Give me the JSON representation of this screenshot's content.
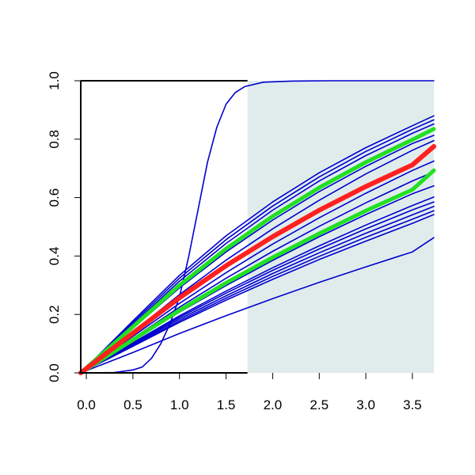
{
  "chart_data": {
    "type": "line",
    "title": "",
    "xlabel": "",
    "ylabel": "",
    "xlim": [
      -0.06,
      3.73
    ],
    "ylim": [
      0,
      1
    ],
    "grid": false,
    "x_ticks": [
      {
        "value": 0.0,
        "label": "0.0"
      },
      {
        "value": 0.5,
        "label": "0.5"
      },
      {
        "value": 1.0,
        "label": "1.0"
      },
      {
        "value": 1.5,
        "label": "1.5"
      },
      {
        "value": 2.0,
        "label": "2.0"
      },
      {
        "value": 2.5,
        "label": "2.5"
      },
      {
        "value": 3.0,
        "label": "3.0"
      },
      {
        "value": 3.5,
        "label": "3.5"
      }
    ],
    "y_ticks": [
      {
        "value": 0.0,
        "label": "0.0"
      },
      {
        "value": 0.2,
        "label": "0.2"
      },
      {
        "value": 0.4,
        "label": "0.4"
      },
      {
        "value": 0.6,
        "label": "0.6"
      },
      {
        "value": 0.8,
        "label": "0.8"
      },
      {
        "value": 1.0,
        "label": "1.0"
      }
    ],
    "shaded_region": {
      "x_from": 1.73,
      "x_to": 3.73,
      "y_from": 0,
      "y_to": 1,
      "color": "#e0ecec"
    },
    "colors": {
      "thin": "#0000cd",
      "mean": "#ff2020",
      "band": "#22e022",
      "axis": "#000000"
    },
    "series": [
      {
        "role": "sigmoid",
        "x": [
          -0.06,
          0.3,
          0.5,
          0.6,
          0.7,
          0.8,
          0.9,
          1.0,
          1.1,
          1.2,
          1.3,
          1.4,
          1.5,
          1.6,
          1.7,
          1.9,
          2.2,
          2.6,
          3.73
        ],
        "y": [
          0,
          0.001,
          0.01,
          0.02,
          0.05,
          0.1,
          0.17,
          0.26,
          0.4,
          0.56,
          0.72,
          0.84,
          0.92,
          0.96,
          0.98,
          0.995,
          0.999,
          1.0,
          1.0
        ]
      },
      {
        "role": "thin",
        "x": [
          -0.06,
          0.5,
          1.0,
          1.5,
          2.0,
          2.5,
          3.0,
          3.5,
          3.73
        ],
        "y": [
          0,
          0.153,
          0.291,
          0.414,
          0.523,
          0.621,
          0.707,
          0.785,
          0.813
        ]
      },
      {
        "role": "thin",
        "x": [
          -0.06,
          0.5,
          1.0,
          1.5,
          2.0,
          2.5,
          3.0,
          3.5,
          3.73
        ],
        "y": [
          0,
          0.166,
          0.314,
          0.443,
          0.557,
          0.657,
          0.744,
          0.82,
          0.852
        ]
      },
      {
        "role": "thin",
        "x": [
          -0.06,
          0.5,
          1.0,
          1.5,
          2.0,
          2.5,
          3.0,
          3.5,
          3.73
        ],
        "y": [
          0,
          0.172,
          0.324,
          0.456,
          0.571,
          0.671,
          0.758,
          0.834,
          0.866
        ]
      },
      {
        "role": "thin",
        "x": [
          -0.06,
          0.5,
          1.0,
          1.5,
          2.0,
          2.5,
          3.0,
          3.5,
          3.73
        ],
        "y": [
          0,
          0.178,
          0.334,
          0.469,
          0.585,
          0.685,
          0.771,
          0.846,
          0.88
        ]
      },
      {
        "role": "thin",
        "x": [
          -0.06,
          0.5,
          1.0,
          1.5,
          2.0,
          2.5,
          3.0,
          3.5,
          3.73
        ],
        "y": [
          0,
          0.16,
          0.302,
          0.428,
          0.54,
          0.639,
          0.726,
          0.803,
          0.833
        ]
      },
      {
        "role": "thin",
        "x": [
          -0.06,
          0.5,
          1.0,
          1.5,
          2.0,
          2.5,
          3.0,
          3.5,
          3.73
        ],
        "y": [
          0,
          0.14,
          0.268,
          0.386,
          0.493,
          0.591,
          0.681,
          0.762,
          0.795
        ]
      },
      {
        "role": "thin",
        "x": [
          -0.06,
          0.5,
          1.0,
          1.5,
          2.0,
          2.5,
          3.0,
          3.5,
          3.73
        ],
        "y": [
          0,
          0.125,
          0.238,
          0.343,
          0.441,
          0.531,
          0.615,
          0.693,
          0.725
        ]
      },
      {
        "role": "thin",
        "x": [
          -0.06,
          0.5,
          1.0,
          1.5,
          2.0,
          2.5,
          3.0,
          3.5,
          3.73
        ],
        "y": [
          0,
          0.118,
          0.225,
          0.324,
          0.416,
          0.502,
          0.582,
          0.657,
          0.688
        ]
      },
      {
        "role": "thin",
        "x": [
          -0.06,
          0.5,
          1.0,
          1.5,
          2.0,
          2.5,
          3.0,
          3.5,
          3.73
        ],
        "y": [
          0,
          0.11,
          0.208,
          0.299,
          0.385,
          0.466,
          0.542,
          0.613,
          0.64
        ]
      },
      {
        "role": "thin",
        "x": [
          -0.06,
          0.5,
          1.0,
          1.5,
          2.0,
          2.5,
          3.0,
          3.5,
          3.73
        ],
        "y": [
          0,
          0.1,
          0.19,
          0.273,
          0.351,
          0.424,
          0.493,
          0.558,
          0.585
        ]
      },
      {
        "role": "thin",
        "x": [
          -0.06,
          0.5,
          1.0,
          1.5,
          2.0,
          2.5,
          3.0,
          3.5,
          3.73
        ],
        "y": [
          0,
          0.103,
          0.195,
          0.28,
          0.36,
          0.435,
          0.506,
          0.573,
          0.602
        ]
      },
      {
        "role": "thin",
        "x": [
          -0.06,
          0.5,
          1.0,
          1.5,
          2.0,
          2.5,
          3.0,
          3.5,
          3.73
        ],
        "y": [
          0,
          0.097,
          0.184,
          0.264,
          0.34,
          0.411,
          0.478,
          0.541,
          0.57
        ]
      },
      {
        "role": "thin",
        "x": [
          -0.06,
          0.5,
          1.0,
          1.5,
          2.0,
          2.5,
          3.0,
          3.5,
          3.73
        ],
        "y": [
          0,
          0.094,
          0.178,
          0.256,
          0.33,
          0.399,
          0.464,
          0.526,
          0.555
        ]
      },
      {
        "role": "thin",
        "x": [
          -0.06,
          0.5,
          1.0,
          1.5,
          2.0,
          2.5,
          3.0,
          3.5,
          3.73
        ],
        "y": [
          0,
          0.091,
          0.173,
          0.249,
          0.32,
          0.388,
          0.451,
          0.512,
          0.542
        ]
      },
      {
        "role": "thin",
        "x": [
          -0.06,
          0.5,
          1.0,
          1.5,
          2.0,
          2.5,
          3.0,
          3.5,
          3.73
        ],
        "y": [
          0,
          0.07,
          0.135,
          0.196,
          0.254,
          0.31,
          0.363,
          0.414,
          0.463
        ]
      },
      {
        "role": "band",
        "x": [
          -0.06,
          0.5,
          1.0,
          1.5,
          2.0,
          2.5,
          3.0,
          3.5,
          3.73
        ],
        "y": [
          0,
          0.158,
          0.3,
          0.425,
          0.536,
          0.634,
          0.721,
          0.798,
          0.835
        ]
      },
      {
        "role": "band",
        "x": [
          -0.06,
          0.5,
          1.0,
          1.5,
          2.0,
          2.5,
          3.0,
          3.5,
          3.73
        ],
        "y": [
          0,
          0.113,
          0.214,
          0.308,
          0.395,
          0.477,
          0.555,
          0.627,
          0.693
        ]
      },
      {
        "role": "mean",
        "x": [
          -0.06,
          0.5,
          1.0,
          1.5,
          2.0,
          2.5,
          3.0,
          3.5,
          3.73
        ],
        "y": [
          0,
          0.136,
          0.257,
          0.367,
          0.466,
          0.557,
          0.638,
          0.712,
          0.775
        ]
      }
    ]
  }
}
